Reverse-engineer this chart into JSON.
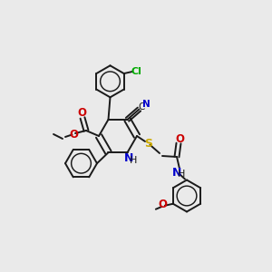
{
  "bg_color": "#eaeaea",
  "line_color": "#1a1a1a",
  "bond_lw": 1.4,
  "colors": {
    "N": "#0000cc",
    "O": "#cc0000",
    "S": "#ccaa00",
    "Cl": "#00aa00",
    "C": "#1a1a1a"
  },
  "fig_w": 3.0,
  "fig_h": 3.0,
  "dpi": 100
}
